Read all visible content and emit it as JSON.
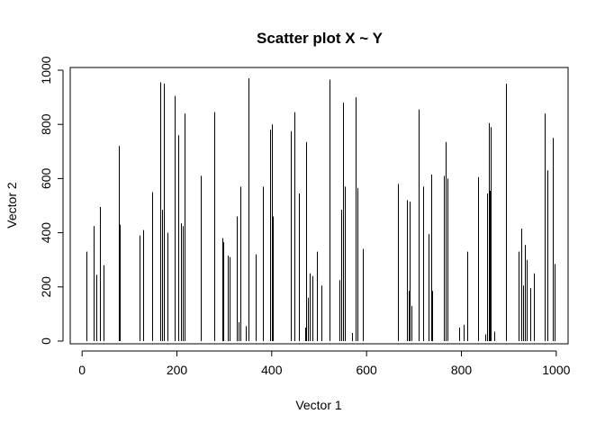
{
  "chart_data": {
    "type": "scatter",
    "plot_style": "histogram-like vertical lines",
    "title": "Scatter plot X ~ Y",
    "xlabel": "Vector 1",
    "ylabel": "Vector 2",
    "xlim": [
      -25,
      1025
    ],
    "ylim": [
      -10,
      1010
    ],
    "x_ticks": [
      0,
      200,
      400,
      600,
      800,
      1000
    ],
    "y_ticks": [
      0,
      200,
      400,
      600,
      800,
      1000
    ],
    "x_tick_labels": [
      "0",
      "200",
      "400",
      "600",
      "800",
      "1000"
    ],
    "y_tick_labels": [
      "0",
      "200",
      "400",
      "600",
      "800",
      "1000"
    ],
    "grid": false,
    "line_color": "#000000",
    "points": [
      {
        "x": 10,
        "y": 330
      },
      {
        "x": 25,
        "y": 425
      },
      {
        "x": 30,
        "y": 245
      },
      {
        "x": 37,
        "y": 495
      },
      {
        "x": 45,
        "y": 280
      },
      {
        "x": 78,
        "y": 720
      },
      {
        "x": 80,
        "y": 430
      },
      {
        "x": 122,
        "y": 390
      },
      {
        "x": 128,
        "y": 410
      },
      {
        "x": 148,
        "y": 550
      },
      {
        "x": 164,
        "y": 955
      },
      {
        "x": 168,
        "y": 485
      },
      {
        "x": 172,
        "y": 950
      },
      {
        "x": 180,
        "y": 400
      },
      {
        "x": 196,
        "y": 905
      },
      {
        "x": 203,
        "y": 760
      },
      {
        "x": 208,
        "y": 435
      },
      {
        "x": 212,
        "y": 425
      },
      {
        "x": 216,
        "y": 840
      },
      {
        "x": 251,
        "y": 610
      },
      {
        "x": 278,
        "y": 845
      },
      {
        "x": 295,
        "y": 380
      },
      {
        "x": 298,
        "y": 365
      },
      {
        "x": 308,
        "y": 315
      },
      {
        "x": 312,
        "y": 310
      },
      {
        "x": 326,
        "y": 460
      },
      {
        "x": 330,
        "y": 70
      },
      {
        "x": 333,
        "y": 570
      },
      {
        "x": 346,
        "y": 55
      },
      {
        "x": 350,
        "y": 970
      },
      {
        "x": 366,
        "y": 320
      },
      {
        "x": 382,
        "y": 570
      },
      {
        "x": 397,
        "y": 780
      },
      {
        "x": 400,
        "y": 800
      },
      {
        "x": 402,
        "y": 460
      },
      {
        "x": 440,
        "y": 775
      },
      {
        "x": 448,
        "y": 845
      },
      {
        "x": 458,
        "y": 545
      },
      {
        "x": 470,
        "y": 50
      },
      {
        "x": 473,
        "y": 735
      },
      {
        "x": 476,
        "y": 160
      },
      {
        "x": 481,
        "y": 250
      },
      {
        "x": 486,
        "y": 240
      },
      {
        "x": 496,
        "y": 330
      },
      {
        "x": 505,
        "y": 205
      },
      {
        "x": 521,
        "y": 965
      },
      {
        "x": 543,
        "y": 225
      },
      {
        "x": 546,
        "y": 485
      },
      {
        "x": 550,
        "y": 880
      },
      {
        "x": 555,
        "y": 570
      },
      {
        "x": 570,
        "y": 30
      },
      {
        "x": 576,
        "y": 900
      },
      {
        "x": 580,
        "y": 565
      },
      {
        "x": 592,
        "y": 340
      },
      {
        "x": 666,
        "y": 580
      },
      {
        "x": 686,
        "y": 520
      },
      {
        "x": 688,
        "y": 185
      },
      {
        "x": 691,
        "y": 515
      },
      {
        "x": 694,
        "y": 130
      },
      {
        "x": 709,
        "y": 855
      },
      {
        "x": 720,
        "y": 570
      },
      {
        "x": 730,
        "y": 395
      },
      {
        "x": 736,
        "y": 615
      },
      {
        "x": 738,
        "y": 185
      },
      {
        "x": 763,
        "y": 610
      },
      {
        "x": 767,
        "y": 735
      },
      {
        "x": 771,
        "y": 600
      },
      {
        "x": 796,
        "y": 50
      },
      {
        "x": 804,
        "y": 60
      },
      {
        "x": 812,
        "y": 330
      },
      {
        "x": 836,
        "y": 605
      },
      {
        "x": 850,
        "y": 25
      },
      {
        "x": 855,
        "y": 545
      },
      {
        "x": 857,
        "y": 805
      },
      {
        "x": 859,
        "y": 555
      },
      {
        "x": 861,
        "y": 790
      },
      {
        "x": 870,
        "y": 35
      },
      {
        "x": 894,
        "y": 950
      },
      {
        "x": 920,
        "y": 330
      },
      {
        "x": 926,
        "y": 415
      },
      {
        "x": 930,
        "y": 205
      },
      {
        "x": 934,
        "y": 355
      },
      {
        "x": 938,
        "y": 300
      },
      {
        "x": 945,
        "y": 195
      },
      {
        "x": 952,
        "y": 250
      },
      {
        "x": 975,
        "y": 840
      },
      {
        "x": 981,
        "y": 630
      },
      {
        "x": 992,
        "y": 750
      },
      {
        "x": 996,
        "y": 285
      }
    ]
  }
}
